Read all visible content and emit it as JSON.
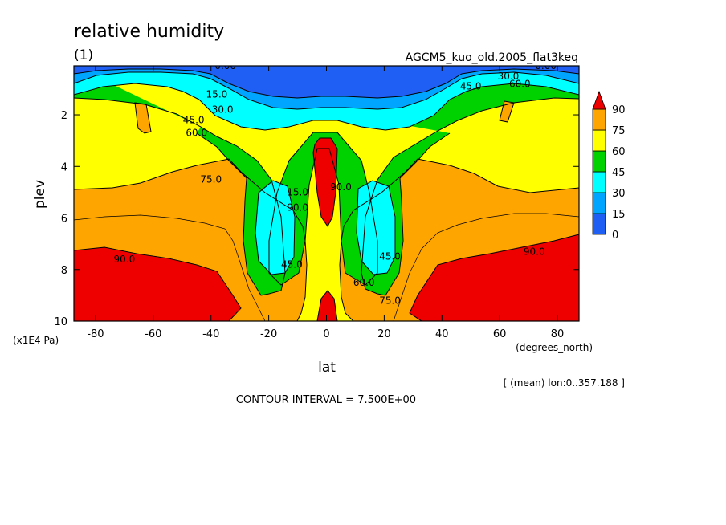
{
  "chart_data": {
    "type": "heatmap",
    "title": "relative humidity",
    "subtitle": "(1)",
    "experiment": "AGCM5_kuo_old.2005_flat3keq",
    "xlabel": "lat",
    "xunit": "(degrees_north)",
    "ylabel": "plev",
    "yunit": "(x1E4 Pa)",
    "x_ticks": [
      -80,
      -60,
      -40,
      -20,
      0,
      20,
      40,
      60,
      80
    ],
    "y_ticks": [
      2,
      4,
      6,
      8,
      10
    ],
    "xlim": [
      -87.5,
      87.5
    ],
    "ylim": [
      10,
      0.1
    ],
    "y_inverted": true,
    "contour_interval_text": "CONTOUR INTERVAL = 7.500E+00",
    "mean_text": "[ (mean) lon:0..357.188 ]",
    "contour_interval": 7.5,
    "contour_labels": [
      {
        "lat": -35,
        "plev": 0.1,
        "text": "0.00"
      },
      {
        "lat": -38,
        "plev": 1.2,
        "text": "15.0"
      },
      {
        "lat": -36,
        "plev": 1.8,
        "text": "30.0"
      },
      {
        "lat": -46,
        "plev": 2.2,
        "text": "45.0"
      },
      {
        "lat": -45,
        "plev": 2.7,
        "text": "60.0"
      },
      {
        "lat": -40,
        "plev": 4.5,
        "text": "75.0"
      },
      {
        "lat": -70,
        "plev": 7.6,
        "text": "90.0"
      },
      {
        "lat": -10,
        "plev": 5.0,
        "text": "15.0"
      },
      {
        "lat": -10,
        "plev": 5.6,
        "text": "90.0"
      },
      {
        "lat": 5,
        "plev": 4.8,
        "text": "90.0"
      },
      {
        "lat": -12,
        "plev": 7.8,
        "text": "45.0"
      },
      {
        "lat": 22,
        "plev": 7.5,
        "text": "45.0"
      },
      {
        "lat": 13,
        "plev": 8.5,
        "text": "60.0"
      },
      {
        "lat": 22,
        "plev": 9.2,
        "text": "75.0"
      },
      {
        "lat": 50,
        "plev": 0.9,
        "text": "45.0"
      },
      {
        "lat": 63,
        "plev": 0.5,
        "text": "30.0"
      },
      {
        "lat": 76,
        "plev": 0.1,
        "text": "0.00"
      },
      {
        "lat": 67,
        "plev": 0.8,
        "text": "60.0"
      },
      {
        "lat": 72,
        "plev": 7.3,
        "text": "90.0"
      }
    ],
    "colorbar": {
      "levels": [
        0,
        15,
        30,
        45,
        60,
        75,
        90
      ],
      "colors": [
        "#1f5ff4",
        "#00a5ff",
        "#00ffff",
        "#00d200",
        "#ffff00",
        "#ffa500",
        "#ee0000"
      ]
    }
  }
}
